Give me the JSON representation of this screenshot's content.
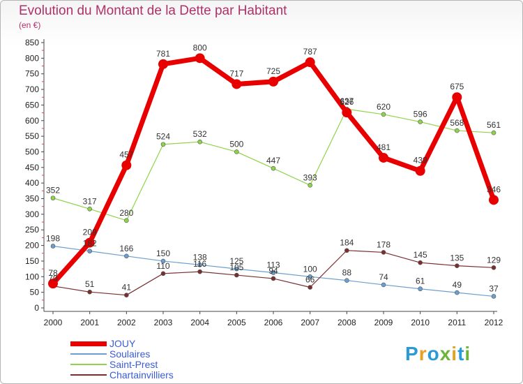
{
  "header": {
    "title": "Evolution du Montant de la Dette par Habitant",
    "subtitle": "(en €)"
  },
  "logo": {
    "text": "Proxiti",
    "letters": [
      {
        "ch": "P",
        "color": "#2a9ad6"
      },
      {
        "ch": "r",
        "color": "#e8a020"
      },
      {
        "ch": "o",
        "color": "#2a9ad6"
      },
      {
        "ch": "x",
        "color": "#6fb33a"
      },
      {
        "ch": "i",
        "color": "#e8a020"
      },
      {
        "ch": "t",
        "color": "#2a9ad6"
      },
      {
        "ch": "i",
        "color": "#6fb33a"
      }
    ]
  },
  "chart_data": {
    "type": "line",
    "title": "Evolution du Montant de la Dette par Habitant",
    "subtitle": "(en €)",
    "xlabel": "",
    "ylabel": "",
    "x": [
      "2000",
      "2001",
      "2002",
      "2003",
      "2004",
      "2005",
      "2006",
      "2007",
      "2008",
      "2009",
      "2010",
      "2011",
      "2012"
    ],
    "ylim": [
      0,
      850
    ],
    "yticks": [
      0,
      50,
      100,
      150,
      200,
      250,
      300,
      350,
      400,
      450,
      500,
      550,
      600,
      650,
      700,
      750,
      800,
      850
    ],
    "grid": false,
    "legend_position": "bottom-left",
    "series": [
      {
        "name": "JOUY",
        "color": "#e80000",
        "width": 7,
        "marker": 7,
        "values": [
          78,
          209,
          457,
          781,
          800,
          717,
          725,
          787,
          626,
          481,
          439,
          675,
          346
        ]
      },
      {
        "name": "Soulaires",
        "color": "#6a9fd0",
        "width": 1.2,
        "marker": 3,
        "values": [
          198,
          182,
          166,
          150,
          138,
          125,
          113,
          100,
          88,
          74,
          61,
          49,
          37
        ]
      },
      {
        "name": "Saint-Prest",
        "color": "#8ed44a",
        "width": 1.2,
        "marker": 3,
        "values": [
          352,
          317,
          280,
          524,
          532,
          500,
          447,
          393,
          637,
          620,
          596,
          568,
          561
        ]
      },
      {
        "name": "Chartainvilliers",
        "color": "#7a2f2f",
        "width": 1.2,
        "marker": 3,
        "values": [
          70,
          51,
          41,
          110,
          116,
          105,
          94,
          66,
          184,
          178,
          145,
          135,
          129
        ]
      }
    ]
  }
}
